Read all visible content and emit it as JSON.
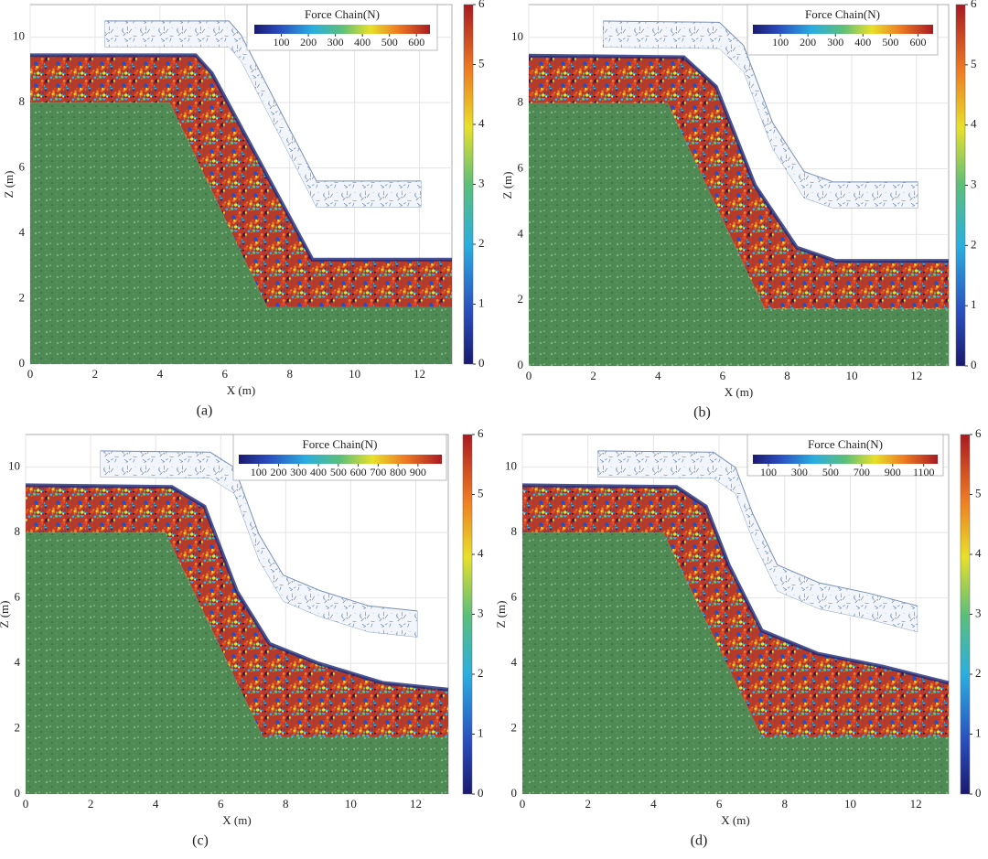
{
  "panels": [
    {
      "caption": "(a)",
      "xlabel": "X (m)",
      "ylabel": "Z (m)",
      "xlim": [
        0,
        13
      ],
      "xticks": [
        0,
        2,
        4,
        6,
        8,
        10,
        12
      ],
      "ylim": [
        0,
        11
      ],
      "yticks": [
        0,
        2,
        4,
        6,
        8,
        10
      ],
      "colorbar": {
        "lim": [
          0,
          6
        ],
        "ticks": [
          0,
          1,
          2,
          3,
          4,
          5,
          6
        ]
      },
      "legend": {
        "title": "Force Chain(N)",
        "lim": [
          0,
          650
        ],
        "ticks": [
          100,
          200,
          300,
          400,
          500,
          600
        ]
      }
    },
    {
      "caption": "(b)",
      "xlabel": "X (m)",
      "ylabel": "Z (m)",
      "xlim": [
        0,
        13
      ],
      "xticks": [
        0,
        2,
        4,
        6,
        8,
        10,
        12
      ],
      "ylim": [
        0,
        11
      ],
      "yticks": [
        0,
        2,
        4,
        6,
        8,
        10
      ],
      "colorbar": {
        "lim": [
          0,
          6
        ],
        "ticks": [
          0,
          1,
          2,
          3,
          4,
          5,
          6
        ]
      },
      "legend": {
        "title": "Force Chain(N)",
        "lim": [
          0,
          655
        ],
        "ticks": [
          100,
          200,
          300,
          400,
          500,
          600
        ]
      }
    },
    {
      "caption": "(c)",
      "xlabel": "X (m)",
      "ylabel": "Z (m)",
      "xlim": [
        0,
        13
      ],
      "xticks": [
        0,
        2,
        4,
        6,
        8,
        10,
        12
      ],
      "ylim": [
        0,
        11
      ],
      "yticks": [
        0,
        2,
        4,
        6,
        8,
        10
      ],
      "colorbar": {
        "lim": [
          0,
          6
        ],
        "ticks": [
          0,
          1,
          2,
          3,
          4,
          5,
          6
        ]
      },
      "legend": {
        "title": "Force Chain(N)",
        "lim": [
          0,
          1020
        ],
        "ticks": [
          100,
          200,
          300,
          400,
          500,
          600,
          700,
          800,
          900
        ]
      }
    },
    {
      "caption": "(d)",
      "xlabel": "X (m)",
      "ylabel": "Z (m)",
      "xlim": [
        0,
        13
      ],
      "xticks": [
        0,
        2,
        4,
        6,
        8,
        10,
        12
      ],
      "ylim": [
        0,
        11
      ],
      "yticks": [
        0,
        2,
        4,
        6,
        8,
        10
      ],
      "colorbar": {
        "lim": [
          0,
          6
        ],
        "ticks": [
          0,
          1,
          2,
          3,
          4,
          5,
          6
        ]
      },
      "legend": {
        "title": "Force Chain(N)",
        "lim": [
          0,
          1190
        ],
        "ticks": [
          100,
          300,
          500,
          700,
          900,
          1100
        ]
      }
    }
  ]
}
